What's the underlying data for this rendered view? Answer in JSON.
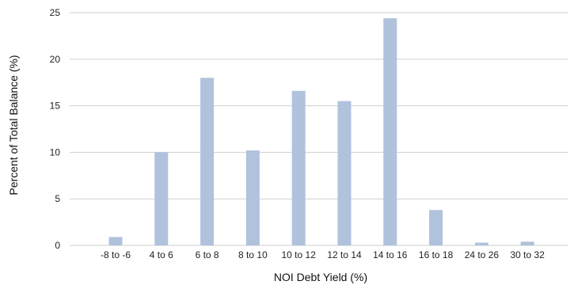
{
  "chart_data": {
    "type": "bar",
    "title": "",
    "xlabel": "NOI Debt Yield (%)",
    "ylabel": "Percent of Total Balance (%)",
    "categories": [
      "-8 to -6",
      "4 to 6",
      "6 to 8",
      "8 to 10",
      "10 to 12",
      "12 to 14",
      "14 to 16",
      "16 to 18",
      "24 to 26",
      "30 to 32"
    ],
    "values": [
      0.9,
      10.0,
      18.0,
      10.2,
      16.6,
      15.5,
      24.4,
      3.8,
      0.3,
      0.4
    ],
    "ylim": [
      0,
      25
    ],
    "yticks": [
      0,
      5,
      10,
      15,
      20,
      25
    ],
    "grid": true,
    "colors": {
      "bar": "#b0c2dc",
      "grid": "#cfcfcf"
    }
  }
}
